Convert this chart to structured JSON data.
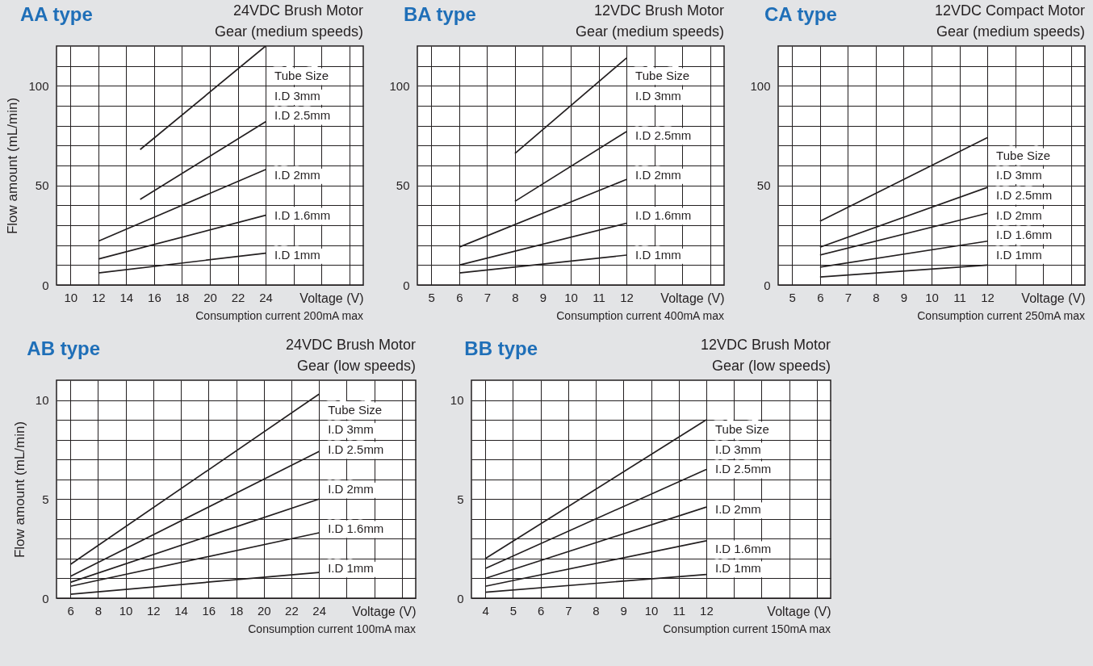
{
  "chart_data": [
    {
      "type": "line",
      "title": "AA type",
      "subtitle": "24VDC Brush Motor\nGear (medium speeds)",
      "xlabel": "Voltage (V)",
      "ylabel": "Flow amount (mL/min)",
      "xlim": [
        9,
        31
      ],
      "ylim": [
        0,
        120
      ],
      "xticks": [
        10,
        12,
        14,
        16,
        18,
        20,
        22,
        24,
        {
          "value": 26,
          "label": null
        },
        {
          "value": 28,
          "label": null
        },
        {
          "value": 30,
          "label": null
        }
      ],
      "yticks": [
        0,
        {
          "value": 10,
          "label": null
        },
        {
          "value": 20,
          "label": null
        },
        {
          "value": 30,
          "label": null
        },
        {
          "value": 40,
          "label": null
        },
        50,
        {
          "value": 60,
          "label": null
        },
        {
          "value": 70,
          "label": null
        },
        {
          "value": 80,
          "label": null
        },
        {
          "value": 90,
          "label": null
        },
        100,
        {
          "value": 110,
          "label": null
        }
      ],
      "grid": true,
      "annotations": [
        "Tube Size",
        "Consumption current 200mA max"
      ],
      "series": [
        {
          "name": "I.D 3mm",
          "color": "#231f20",
          "x": [
            15,
            24
          ],
          "values": [
            68,
            120
          ]
        },
        {
          "name": "I.D 2.5mm",
          "color": "#231f20",
          "x": [
            15,
            24
          ],
          "values": [
            43,
            82
          ]
        },
        {
          "name": "I.D 2mm",
          "color": "#231f20",
          "x": [
            12,
            24
          ],
          "values": [
            22,
            58
          ]
        },
        {
          "name": "I.D 1.6mm",
          "color": "#231f20",
          "x": [
            12,
            24
          ],
          "values": [
            13,
            35
          ]
        },
        {
          "name": "I.D 1mm",
          "color": "#231f20",
          "x": [
            12,
            24
          ],
          "values": [
            6,
            16
          ]
        }
      ]
    },
    {
      "type": "line",
      "title": "BA type",
      "subtitle": "12VDC Brush Motor\nGear (medium speeds)",
      "xlabel": "Voltage (V)",
      "xlim": [
        4.5,
        15.5
      ],
      "ylim": [
        0,
        120
      ],
      "xticks": [
        5,
        6,
        7,
        8,
        9,
        10,
        11,
        12,
        {
          "value": 13,
          "label": null
        },
        {
          "value": 14,
          "label": null
        },
        {
          "value": 15,
          "label": null
        }
      ],
      "yticks": [
        0,
        {
          "value": 10,
          "label": null
        },
        {
          "value": 20,
          "label": null
        },
        {
          "value": 30,
          "label": null
        },
        {
          "value": 40,
          "label": null
        },
        50,
        {
          "value": 60,
          "label": null
        },
        {
          "value": 70,
          "label": null
        },
        {
          "value": 80,
          "label": null
        },
        {
          "value": 90,
          "label": null
        },
        100,
        {
          "value": 110,
          "label": null
        }
      ],
      "grid": true,
      "annotations": [
        "Tube Size",
        "Consumption current 400mA max"
      ],
      "series": [
        {
          "name": "I.D 3mm",
          "color": "#231f20",
          "x": [
            8,
            12
          ],
          "values": [
            66,
            114
          ]
        },
        {
          "name": "I.D 2.5mm",
          "color": "#231f20",
          "x": [
            8,
            12
          ],
          "values": [
            42,
            77
          ]
        },
        {
          "name": "I.D 2mm",
          "color": "#231f20",
          "x": [
            6,
            12
          ],
          "values": [
            19,
            53
          ]
        },
        {
          "name": "I.D 1.6mm",
          "color": "#231f20",
          "x": [
            6,
            12
          ],
          "values": [
            10,
            31
          ]
        },
        {
          "name": "I.D 1mm",
          "color": "#231f20",
          "x": [
            6,
            12
          ],
          "values": [
            6,
            15
          ]
        }
      ]
    },
    {
      "type": "line",
      "title": "CA type",
      "subtitle": "12VDC Compact Motor\nGear (medium speeds)",
      "xlabel": "Voltage (V)",
      "xlim": [
        4.5,
        15.5
      ],
      "ylim": [
        0,
        120
      ],
      "xticks": [
        5,
        6,
        7,
        8,
        9,
        10,
        11,
        12,
        {
          "value": 13,
          "label": null
        },
        {
          "value": 14,
          "label": null
        },
        {
          "value": 15,
          "label": null
        }
      ],
      "yticks": [
        0,
        {
          "value": 10,
          "label": null
        },
        {
          "value": 20,
          "label": null
        },
        {
          "value": 30,
          "label": null
        },
        {
          "value": 40,
          "label": null
        },
        50,
        {
          "value": 60,
          "label": null
        },
        {
          "value": 70,
          "label": null
        },
        {
          "value": 80,
          "label": null
        },
        {
          "value": 90,
          "label": null
        },
        100,
        {
          "value": 110,
          "label": null
        }
      ],
      "grid": true,
      "annotations": [
        "Tube Size",
        "Consumption current 250mA max"
      ],
      "series": [
        {
          "name": "I.D 3mm",
          "color": "#231f20",
          "x": [
            6,
            12
          ],
          "values": [
            32,
            74
          ]
        },
        {
          "name": "I.D 2.5mm",
          "color": "#231f20",
          "x": [
            6,
            12
          ],
          "values": [
            19,
            49
          ]
        },
        {
          "name": "I.D 2mm",
          "color": "#231f20",
          "x": [
            6,
            12
          ],
          "values": [
            15,
            36
          ]
        },
        {
          "name": "I.D 1.6mm",
          "color": "#231f20",
          "x": [
            6,
            12
          ],
          "values": [
            9,
            22
          ]
        },
        {
          "name": "I.D 1mm",
          "color": "#231f20",
          "x": [
            6,
            12
          ],
          "values": [
            4,
            10
          ]
        }
      ]
    },
    {
      "type": "line",
      "title": "AB type",
      "subtitle": "24VDC Brush Motor\nGear (low speeds)",
      "xlabel": "Voltage (V)",
      "ylabel": "Flow amount (mL/min)",
      "xlim": [
        5,
        31
      ],
      "ylim": [
        0,
        11
      ],
      "xticks": [
        6,
        8,
        10,
        12,
        14,
        16,
        18,
        20,
        22,
        24,
        {
          "value": 26,
          "label": null
        },
        {
          "value": 28,
          "label": null
        },
        {
          "value": 30,
          "label": null
        }
      ],
      "yticks": [
        0,
        {
          "value": 1,
          "label": null
        },
        {
          "value": 2,
          "label": null
        },
        {
          "value": 3,
          "label": null
        },
        {
          "value": 4,
          "label": null
        },
        5,
        {
          "value": 6,
          "label": null
        },
        {
          "value": 7,
          "label": null
        },
        {
          "value": 8,
          "label": null
        },
        {
          "value": 9,
          "label": null
        },
        10
      ],
      "grid": true,
      "annotations": [
        "Tube Size",
        "Consumption current 100mA max"
      ],
      "series": [
        {
          "name": "I.D 3mm",
          "color": "#231f20",
          "x": [
            6,
            24
          ],
          "values": [
            1.7,
            10.3
          ]
        },
        {
          "name": "I.D 2.5mm",
          "color": "#231f20",
          "x": [
            6,
            24
          ],
          "values": [
            1.1,
            7.4
          ]
        },
        {
          "name": "I.D 2mm",
          "color": "#231f20",
          "x": [
            6,
            24
          ],
          "values": [
            0.8,
            5
          ]
        },
        {
          "name": "I.D 1.6mm",
          "color": "#231f20",
          "x": [
            6,
            24
          ],
          "values": [
            0.6,
            3.3
          ]
        },
        {
          "name": "I.D 1mm",
          "color": "#231f20",
          "x": [
            6,
            24
          ],
          "values": [
            0.2,
            1.3
          ]
        }
      ]
    },
    {
      "type": "line",
      "title": "BB type",
      "subtitle": "12VDC Brush Motor\nGear (low speeds)",
      "xlabel": "Voltage (V)",
      "xlim": [
        3.5,
        16.5
      ],
      "ylim": [
        0,
        11
      ],
      "xticks": [
        4,
        5,
        6,
        7,
        8,
        9,
        10,
        11,
        12,
        {
          "value": 13,
          "label": null
        },
        {
          "value": 14,
          "label": null
        },
        {
          "value": 15,
          "label": null
        },
        {
          "value": 16,
          "label": null
        }
      ],
      "yticks": [
        0,
        {
          "value": 1,
          "label": null
        },
        {
          "value": 2,
          "label": null
        },
        {
          "value": 3,
          "label": null
        },
        {
          "value": 4,
          "label": null
        },
        5,
        {
          "value": 6,
          "label": null
        },
        {
          "value": 7,
          "label": null
        },
        {
          "value": 8,
          "label": null
        },
        {
          "value": 9,
          "label": null
        },
        10
      ],
      "grid": true,
      "annotations": [
        "Tube Size",
        "Consumption current 150mA max"
      ],
      "series": [
        {
          "name": "I.D 3mm",
          "color": "#231f20",
          "x": [
            4,
            12
          ],
          "values": [
            2,
            9
          ]
        },
        {
          "name": "I.D 2.5mm",
          "color": "#231f20",
          "x": [
            4,
            12
          ],
          "values": [
            1.5,
            6.5
          ]
        },
        {
          "name": "I.D 2mm",
          "color": "#231f20",
          "x": [
            4,
            12
          ],
          "values": [
            1,
            4.6
          ]
        },
        {
          "name": "I.D 1.6mm",
          "color": "#231f20",
          "x": [
            4,
            12
          ],
          "values": [
            0.6,
            2.9
          ]
        },
        {
          "name": "I.D 1mm",
          "color": "#231f20",
          "x": [
            4,
            12
          ],
          "values": [
            0.3,
            1.2
          ]
        }
      ]
    }
  ]
}
